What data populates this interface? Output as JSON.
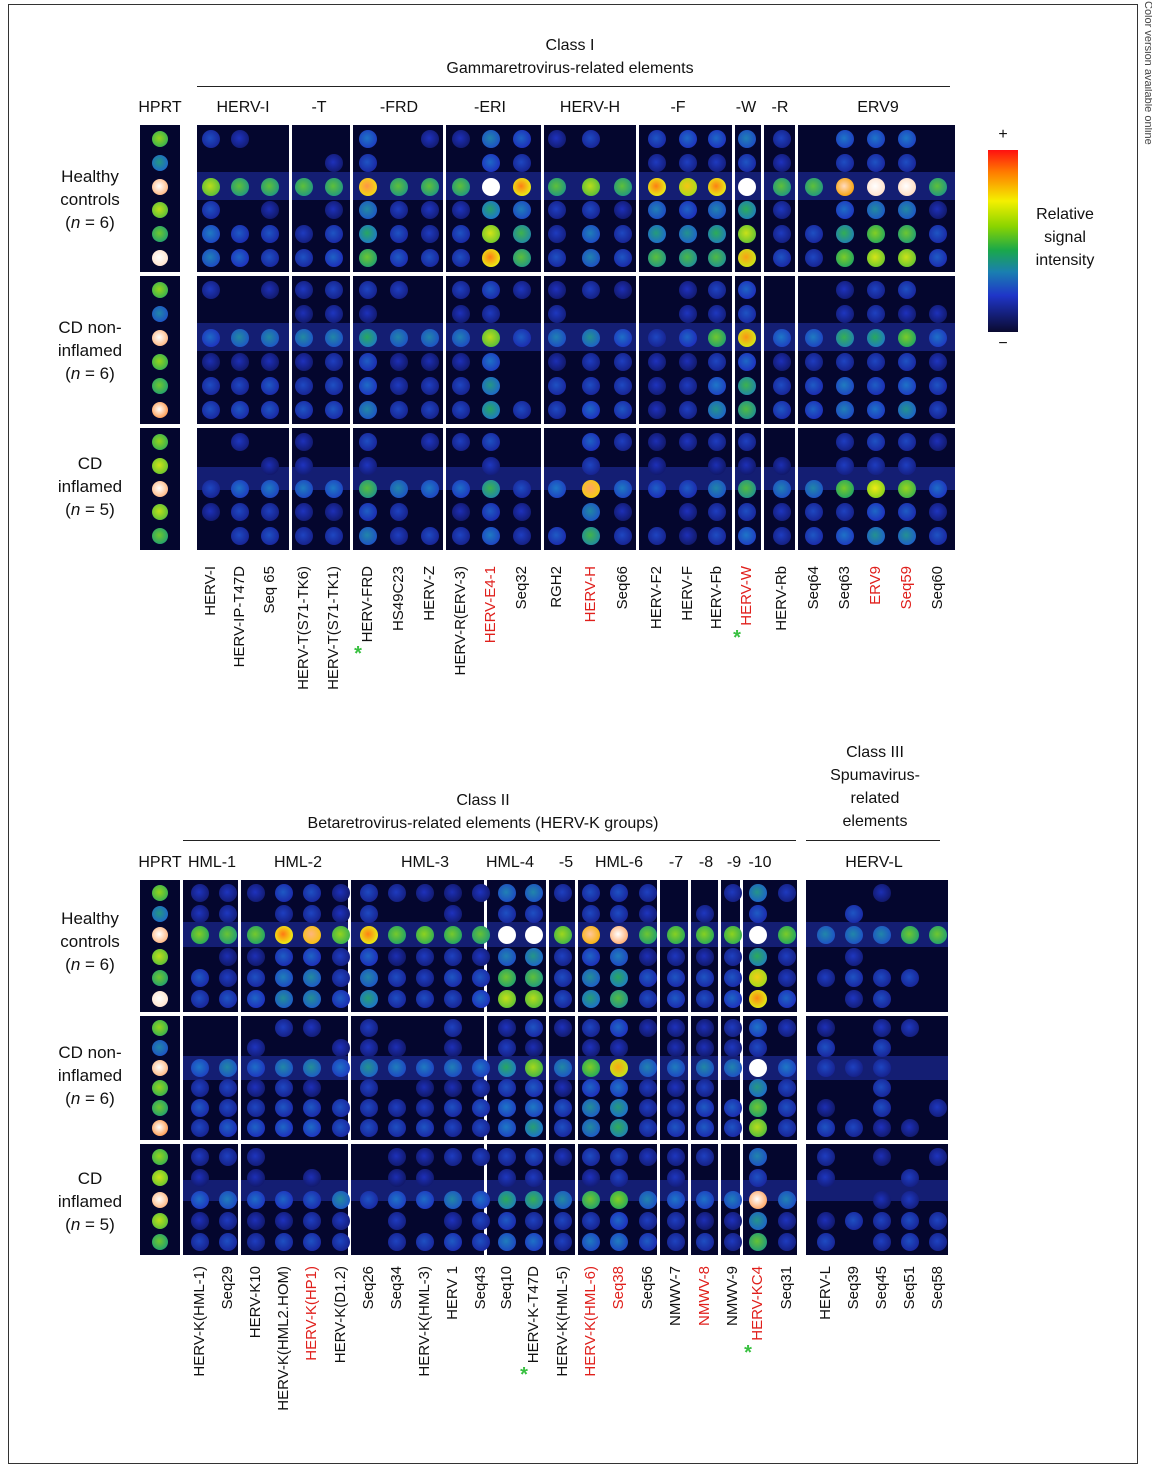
{
  "side_note": "Color version available online",
  "colorbar": {
    "plus": "+",
    "minus": "−",
    "label_lines": [
      "Relative",
      "signal",
      "intensity"
    ]
  },
  "groups": [
    "Healthy controls (n = 6)",
    "CD non-inflamed (n = 6)",
    "CD inflamed (n = 5)"
  ],
  "row_labels": [
    [
      "Healthy",
      "controls",
      "(n = 6)"
    ],
    [
      "CD non-",
      "inflamed",
      "(n = 6)"
    ],
    [
      "CD",
      "inflamed",
      "(n = 5)"
    ]
  ],
  "colors": {
    "highlight": "#e0201c",
    "star": "#38c040",
    "background": "#04062e"
  },
  "hprt_label": "HPRT",
  "class1": {
    "title": [
      "Class I",
      "Gammaretrovirus-related elements"
    ],
    "families": [
      "HERV-I",
      "-T",
      "-FRD",
      "-ERI",
      "HERV-H",
      "-F",
      "-W",
      "-R",
      "ERV9"
    ],
    "probes": [
      {
        "name": "HERV-I"
      },
      {
        "name": "HERV-IP-T47D"
      },
      {
        "name": "Seq 65"
      },
      {
        "name": "HERV-T(S71-TK6)"
      },
      {
        "name": "HERV-T(S71-TK1)"
      },
      {
        "name": "HERV-FRD",
        "star": true
      },
      {
        "name": "HS49C23"
      },
      {
        "name": "HERV-Z"
      },
      {
        "name": "HERV-R(ERV-3)"
      },
      {
        "name": "HERV-E4-1",
        "red": true
      },
      {
        "name": "Seq32"
      },
      {
        "name": "RGH2"
      },
      {
        "name": "HERV-H",
        "red": true
      },
      {
        "name": "Seq66"
      },
      {
        "name": "HERV-F2"
      },
      {
        "name": "HERV-F"
      },
      {
        "name": "HERV-Fb"
      },
      {
        "name": "HERV-W",
        "red": true,
        "star": true
      },
      {
        "name": "HERV-Rb"
      },
      {
        "name": "Seq64"
      },
      {
        "name": "Seq63"
      },
      {
        "name": "ERV9",
        "red": true
      },
      {
        "name": "Seq59",
        "red": true
      },
      {
        "name": "Seq60"
      }
    ]
  },
  "class2": {
    "title": [
      "Class II",
      "Betaretrovirus-related elements (HERV-K groups)"
    ],
    "families": [
      "HML-1",
      "HML-2",
      "HML-3",
      "HML-4",
      "-5",
      "HML-6",
      "-7",
      "-8",
      "-9",
      "-10"
    ],
    "probes": [
      {
        "name": "HERV-K(HML-1)"
      },
      {
        "name": "Seq29"
      },
      {
        "name": "HERV-K10"
      },
      {
        "name": "HERV-K(HML2.HOM)"
      },
      {
        "name": "HERV-K(HP1)",
        "red": true
      },
      {
        "name": "HERV-K(D1.2)"
      },
      {
        "name": "Seq26"
      },
      {
        "name": "Seq34"
      },
      {
        "name": "HERV-K(HML-3)"
      },
      {
        "name": "HERV 1"
      },
      {
        "name": "Seq43"
      },
      {
        "name": "Seq10"
      },
      {
        "name": "HERV-K-T47D",
        "star": true
      },
      {
        "name": "HERV-K(HML-5)"
      },
      {
        "name": "HERV-K(HML-6)",
        "red": true
      },
      {
        "name": "Seq38",
        "red": true
      },
      {
        "name": "Seq56"
      },
      {
        "name": "NMWV-7"
      },
      {
        "name": "NMWV-8",
        "red": true
      },
      {
        "name": "NMWV-9"
      },
      {
        "name": "HERV-KC4",
        "red": true,
        "star": true
      },
      {
        "name": "Seq31"
      }
    ]
  },
  "class3": {
    "title": [
      "Class III",
      "Spumavirus-",
      "related",
      "elements"
    ],
    "families": [
      "HERV-L"
    ],
    "probes": [
      {
        "name": "HERV-L"
      },
      {
        "name": "Seq39"
      },
      {
        "name": "Seq45"
      },
      {
        "name": "Seq51"
      },
      {
        "name": "Seq58"
      }
    ]
  }
}
